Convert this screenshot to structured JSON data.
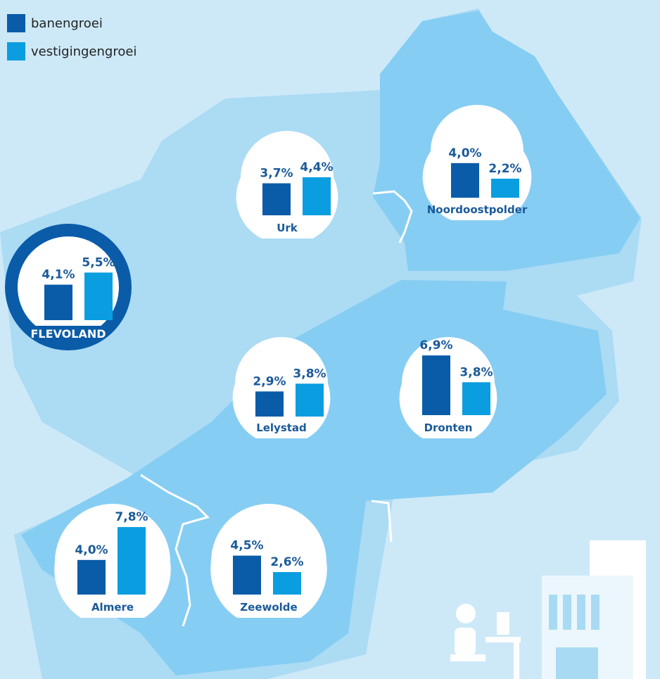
{
  "legend": [
    {
      "label": "banengroei",
      "color": "#0a5ca8"
    },
    {
      "label": "vestigingengroei",
      "color": "#0a9ee0"
    }
  ],
  "regions": [
    {
      "name": "Urk",
      "values": [
        3.7,
        4.4
      ],
      "value_labels": [
        "3,7%",
        "4,4%"
      ]
    },
    {
      "name": "Noordoostpolder",
      "values": [
        4.0,
        2.2
      ],
      "value_labels": [
        "4,0%",
        "2,2%"
      ]
    },
    {
      "name": "FLEVOLAND",
      "values": [
        4.1,
        5.5
      ],
      "value_labels": [
        "4,1%",
        "5,5%"
      ]
    },
    {
      "name": "Lelystad",
      "values": [
        2.9,
        3.8
      ],
      "value_labels": [
        "2,9%",
        "3,8%"
      ]
    },
    {
      "name": "Dronten",
      "values": [
        6.9,
        3.8
      ],
      "value_labels": [
        "6,9%",
        "3,8%"
      ]
    },
    {
      "name": "Almere",
      "values": [
        4.0,
        7.8
      ],
      "value_labels": [
        "4,0%",
        "7,8%"
      ]
    },
    {
      "name": "Zeewolde",
      "values": [
        4.5,
        2.6
      ],
      "value_labels": [
        "4,5%",
        "2,6%"
      ]
    }
  ]
}
